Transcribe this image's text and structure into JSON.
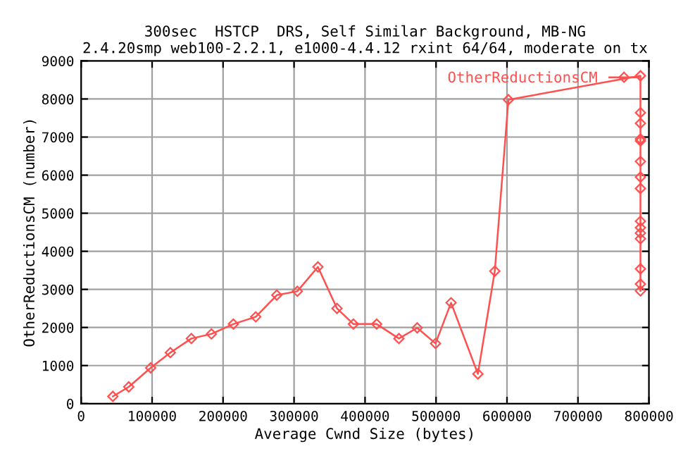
{
  "chart_data": {
    "type": "line",
    "title": "300sec  HSTCP  DRS, Self Similar Background, MB-NG\n2.4.20smp web100-2.2.1, e1000-4.4.12 rxint 64/64, moderate on tx",
    "xlabel": "Average Cwnd Size (bytes)",
    "ylabel": "OtherReductionsCM (number)",
    "xlim": [
      0,
      800000
    ],
    "xticks": [
      0,
      100000,
      200000,
      300000,
      400000,
      500000,
      600000,
      700000,
      800000
    ],
    "ylim": [
      0,
      9000
    ],
    "yticks": [
      0,
      1000,
      2000,
      3000,
      4000,
      5000,
      6000,
      7000,
      8000,
      9000
    ],
    "grid": true,
    "legend": "top right",
    "marker": "diamond",
    "line_style": "solid",
    "series": [
      {
        "name": "OtherReductionsCM",
        "color": "#ff5050",
        "x": [
          44700,
          67100,
          98000,
          125700,
          155300,
          183600,
          214500,
          246000,
          275700,
          304600,
          333600,
          360500,
          383600,
          416400,
          447700,
          473500,
          499300,
          521200,
          559000,
          582800,
          602000,
          788000,
          788000,
          788000,
          788000,
          788000,
          788000,
          788000,
          788000,
          788000,
          788000,
          788000,
          788000,
          788000,
          788000,
          788000
        ],
        "values": [
          190,
          440,
          940,
          1340,
          1710,
          1830,
          2090,
          2280,
          2850,
          2950,
          3590,
          2500,
          2090,
          2090,
          1710,
          1990,
          1580,
          2650,
          780,
          3480,
          7980,
          8610,
          7640,
          7360,
          6950,
          6900,
          6360,
          5950,
          5650,
          4790,
          4620,
          4480,
          4330,
          3540,
          3140,
          2960
        ]
      }
    ]
  }
}
